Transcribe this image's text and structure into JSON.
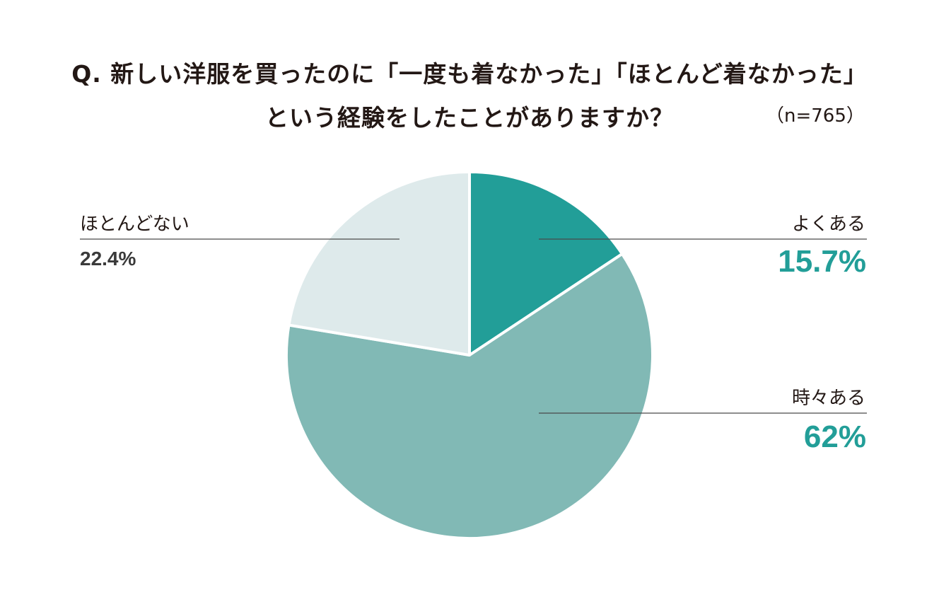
{
  "title": {
    "line1": "Q. 新しい洋服を買ったのに「一度も着なかった」「ほとんど着なかった」",
    "line2": "という経験をしたことがありますか？",
    "sample_size": "（n=765）"
  },
  "colors": {
    "often": "#229e98",
    "sometimes": "#81b9b5",
    "rarely": "#deeaeb",
    "accent_text": "#229e98",
    "dark_text": "#3a3a3a",
    "leader_line": "#4a4a4a"
  },
  "chart_data": {
    "type": "pie",
    "title": "Q. 新しい洋服を買ったのに「一度も着なかった」「ほとんど着なかった」という経験をしたことがありますか？",
    "n": "n=765",
    "slices": [
      {
        "label": "よくある",
        "value": 15.7,
        "display": "15.7%",
        "color": "#229e98"
      },
      {
        "label": "時々ある",
        "value": 62,
        "display": "62%",
        "color": "#81b9b5"
      },
      {
        "label": "ほとんどない",
        "value": 22.4,
        "display": "22.4%",
        "color": "#deeaeb"
      }
    ]
  }
}
